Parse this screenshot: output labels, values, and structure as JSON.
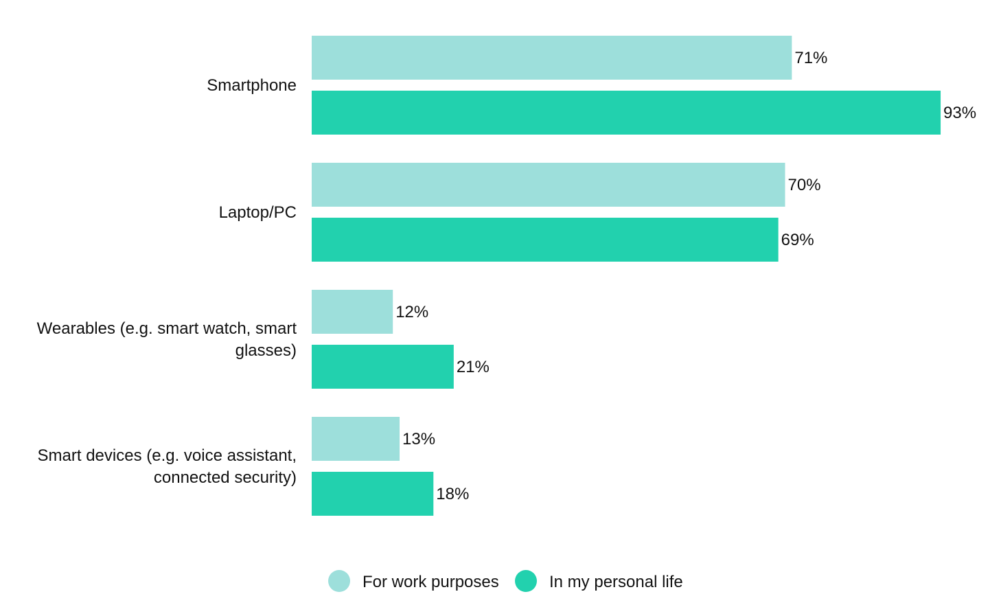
{
  "chart_data": {
    "type": "bar",
    "orientation": "horizontal",
    "categories": [
      "Smartphone",
      "Laptop/PC",
      "Wearables (e.g. smart watch, smart glasses)",
      "Smart devices (e.g. voice assistant, connected security)"
    ],
    "category_label_lines": [
      [
        "Smartphone"
      ],
      [
        "Laptop/PC"
      ],
      [
        "Wearables (e.g. smart watch, smart",
        "glasses)"
      ],
      [
        "Smart devices (e.g. voice assistant,",
        "connected security)"
      ]
    ],
    "series": [
      {
        "name": "For work purposes",
        "values": [
          71,
          70,
          12,
          13
        ],
        "labels": [
          "71%",
          "70%",
          "12%",
          "13%"
        ],
        "color": "#9ddfdb"
      },
      {
        "name": "In my personal life",
        "values": [
          93,
          69,
          21,
          18
        ],
        "labels": [
          "93%",
          "69%",
          "21%",
          "18%"
        ],
        "color": "#22d1ae"
      }
    ],
    "value_unit": "%",
    "xlim": [
      0,
      100
    ],
    "grid": false,
    "legend_position": "bottom-center",
    "title": "",
    "xlabel": "",
    "ylabel": ""
  }
}
